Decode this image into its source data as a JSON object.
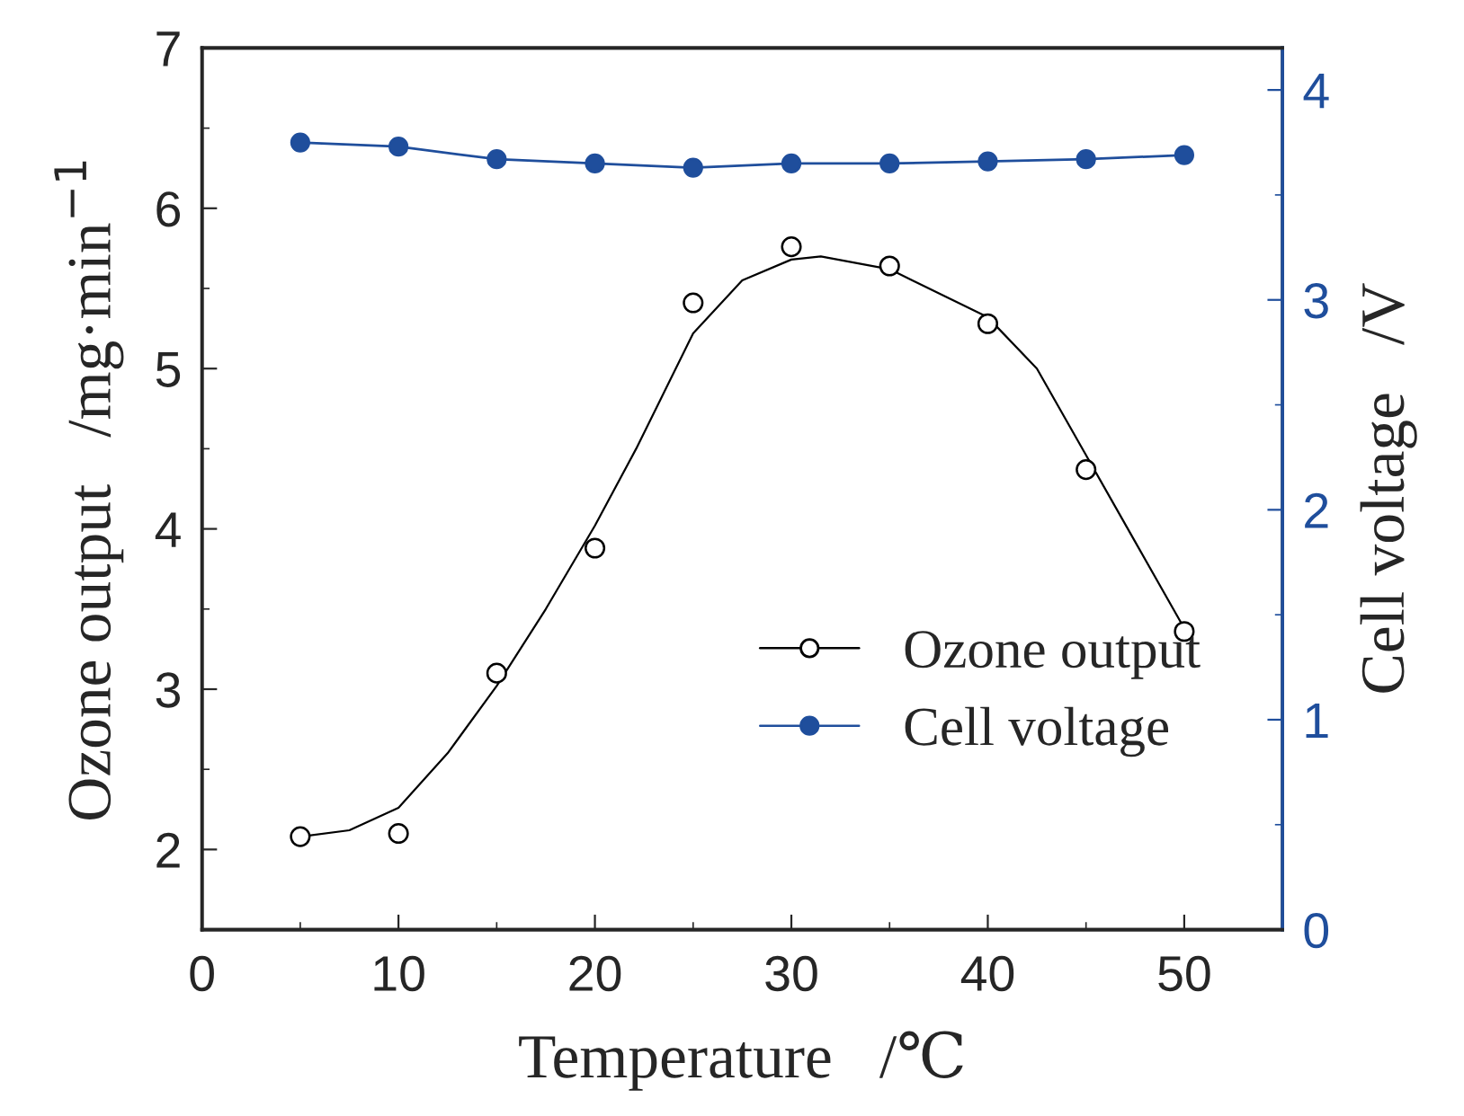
{
  "chart_data": {
    "type": "line",
    "xlabel": "Temperature   /℃",
    "ylabel": "Ozone output   /mg·min$^{−1}$",
    "y2label": "Cell voltage   /V",
    "xlim": [
      0,
      55
    ],
    "xticks": [
      0,
      10,
      20,
      30,
      40,
      50
    ],
    "ylim": [
      1.5,
      7
    ],
    "yticks": [
      2,
      3,
      4,
      5,
      6,
      7
    ],
    "y2lim": [
      0,
      4.2
    ],
    "y2ticks": [
      0,
      1,
      2,
      3,
      4
    ],
    "legend": "bottom right",
    "grid": false,
    "series": [
      {
        "name": "Ozone output",
        "type": "scatter",
        "marker": "circle",
        "color": "#000000",
        "x": [
          5,
          10,
          15,
          20,
          25,
          30,
          35,
          40,
          45,
          50
        ],
        "values": [
          2.08,
          2.1,
          3.1,
          3.88,
          5.41,
          5.76,
          5.64,
          5.28,
          4.37,
          3.36
        ]
      },
      {
        "color": "#000000",
        "x": [
          5,
          7.5,
          10,
          12.5,
          15,
          17.5,
          20,
          22.1,
          25,
          27.5,
          30,
          31.5,
          35,
          40,
          42.5,
          45,
          47.5,
          50
        ],
        "values": [
          2.08,
          2.12,
          2.26,
          2.6,
          3.02,
          3.5,
          4.02,
          4.5,
          5.22,
          5.55,
          5.68,
          5.7,
          5.62,
          5.32,
          5.0,
          4.46,
          3.92,
          3.38
        ]
      },
      {
        "name": "Cell voltage",
        "marker": "circle",
        "color": "#1f4e9c",
        "axis": "y2",
        "x": [
          5,
          10,
          15,
          20,
          25,
          30,
          35,
          40,
          45,
          50
        ],
        "values": [
          3.75,
          3.73,
          3.67,
          3.65,
          3.63,
          3.65,
          3.65,
          3.66,
          3.67,
          3.69
        ]
      }
    ]
  }
}
